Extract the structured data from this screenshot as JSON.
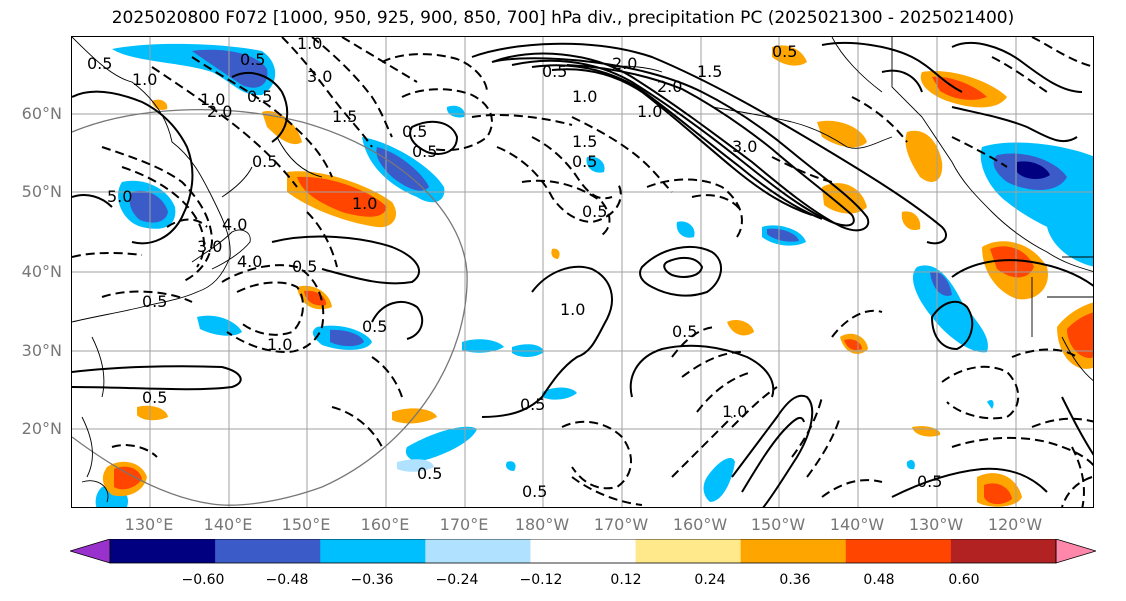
{
  "title": "2025020800 F072 [1000, 950, 925, 900, 850, 700] hPa div., precipitation PC (2025021300 - 2025021400)",
  "lat_labels": [
    "60°N",
    "50°N",
    "40°N",
    "30°N",
    "20°N"
  ],
  "lon_labels": [
    "130°E",
    "140°E",
    "150°E",
    "160°E",
    "170°E",
    "180°W",
    "170°W",
    "160°W",
    "150°W",
    "140°W",
    "130°W",
    "120°W"
  ],
  "colorbar": {
    "ticks": [
      "−0.60",
      "−0.48",
      "−0.36",
      "−0.24",
      "−0.12",
      "0.12",
      "0.24",
      "0.36",
      "0.48",
      "0.60"
    ],
    "colors": [
      "#9932CC",
      "#000080",
      "#3A5BC8",
      "#00BFFF",
      "#B0E2FF",
      "#FFFFFF",
      "#FFE98A",
      "#FFA500",
      "#FF4500",
      "#B22222",
      "#FF88AA"
    ]
  },
  "contour_labels": [
    "1.0",
    "0.5",
    "0.5",
    "1.0",
    "1.0",
    "3.0",
    "0.5",
    "2.0",
    "1.5",
    "0.5",
    "1.0",
    "0.5",
    "0.5",
    "0.5",
    "5.0",
    "0.5",
    "0.5",
    "4.0",
    "3.0",
    "4.0",
    "0.5",
    "1.0",
    "1.0",
    "0.5",
    "0.5",
    "1.5",
    "1.0",
    "0.5",
    "0.5",
    "0.5",
    "0.5",
    "2.0",
    "1.5",
    "2.0",
    "1.0",
    "0.5",
    "0.5",
    "1.0",
    "3.0",
    "0.5"
  ]
}
